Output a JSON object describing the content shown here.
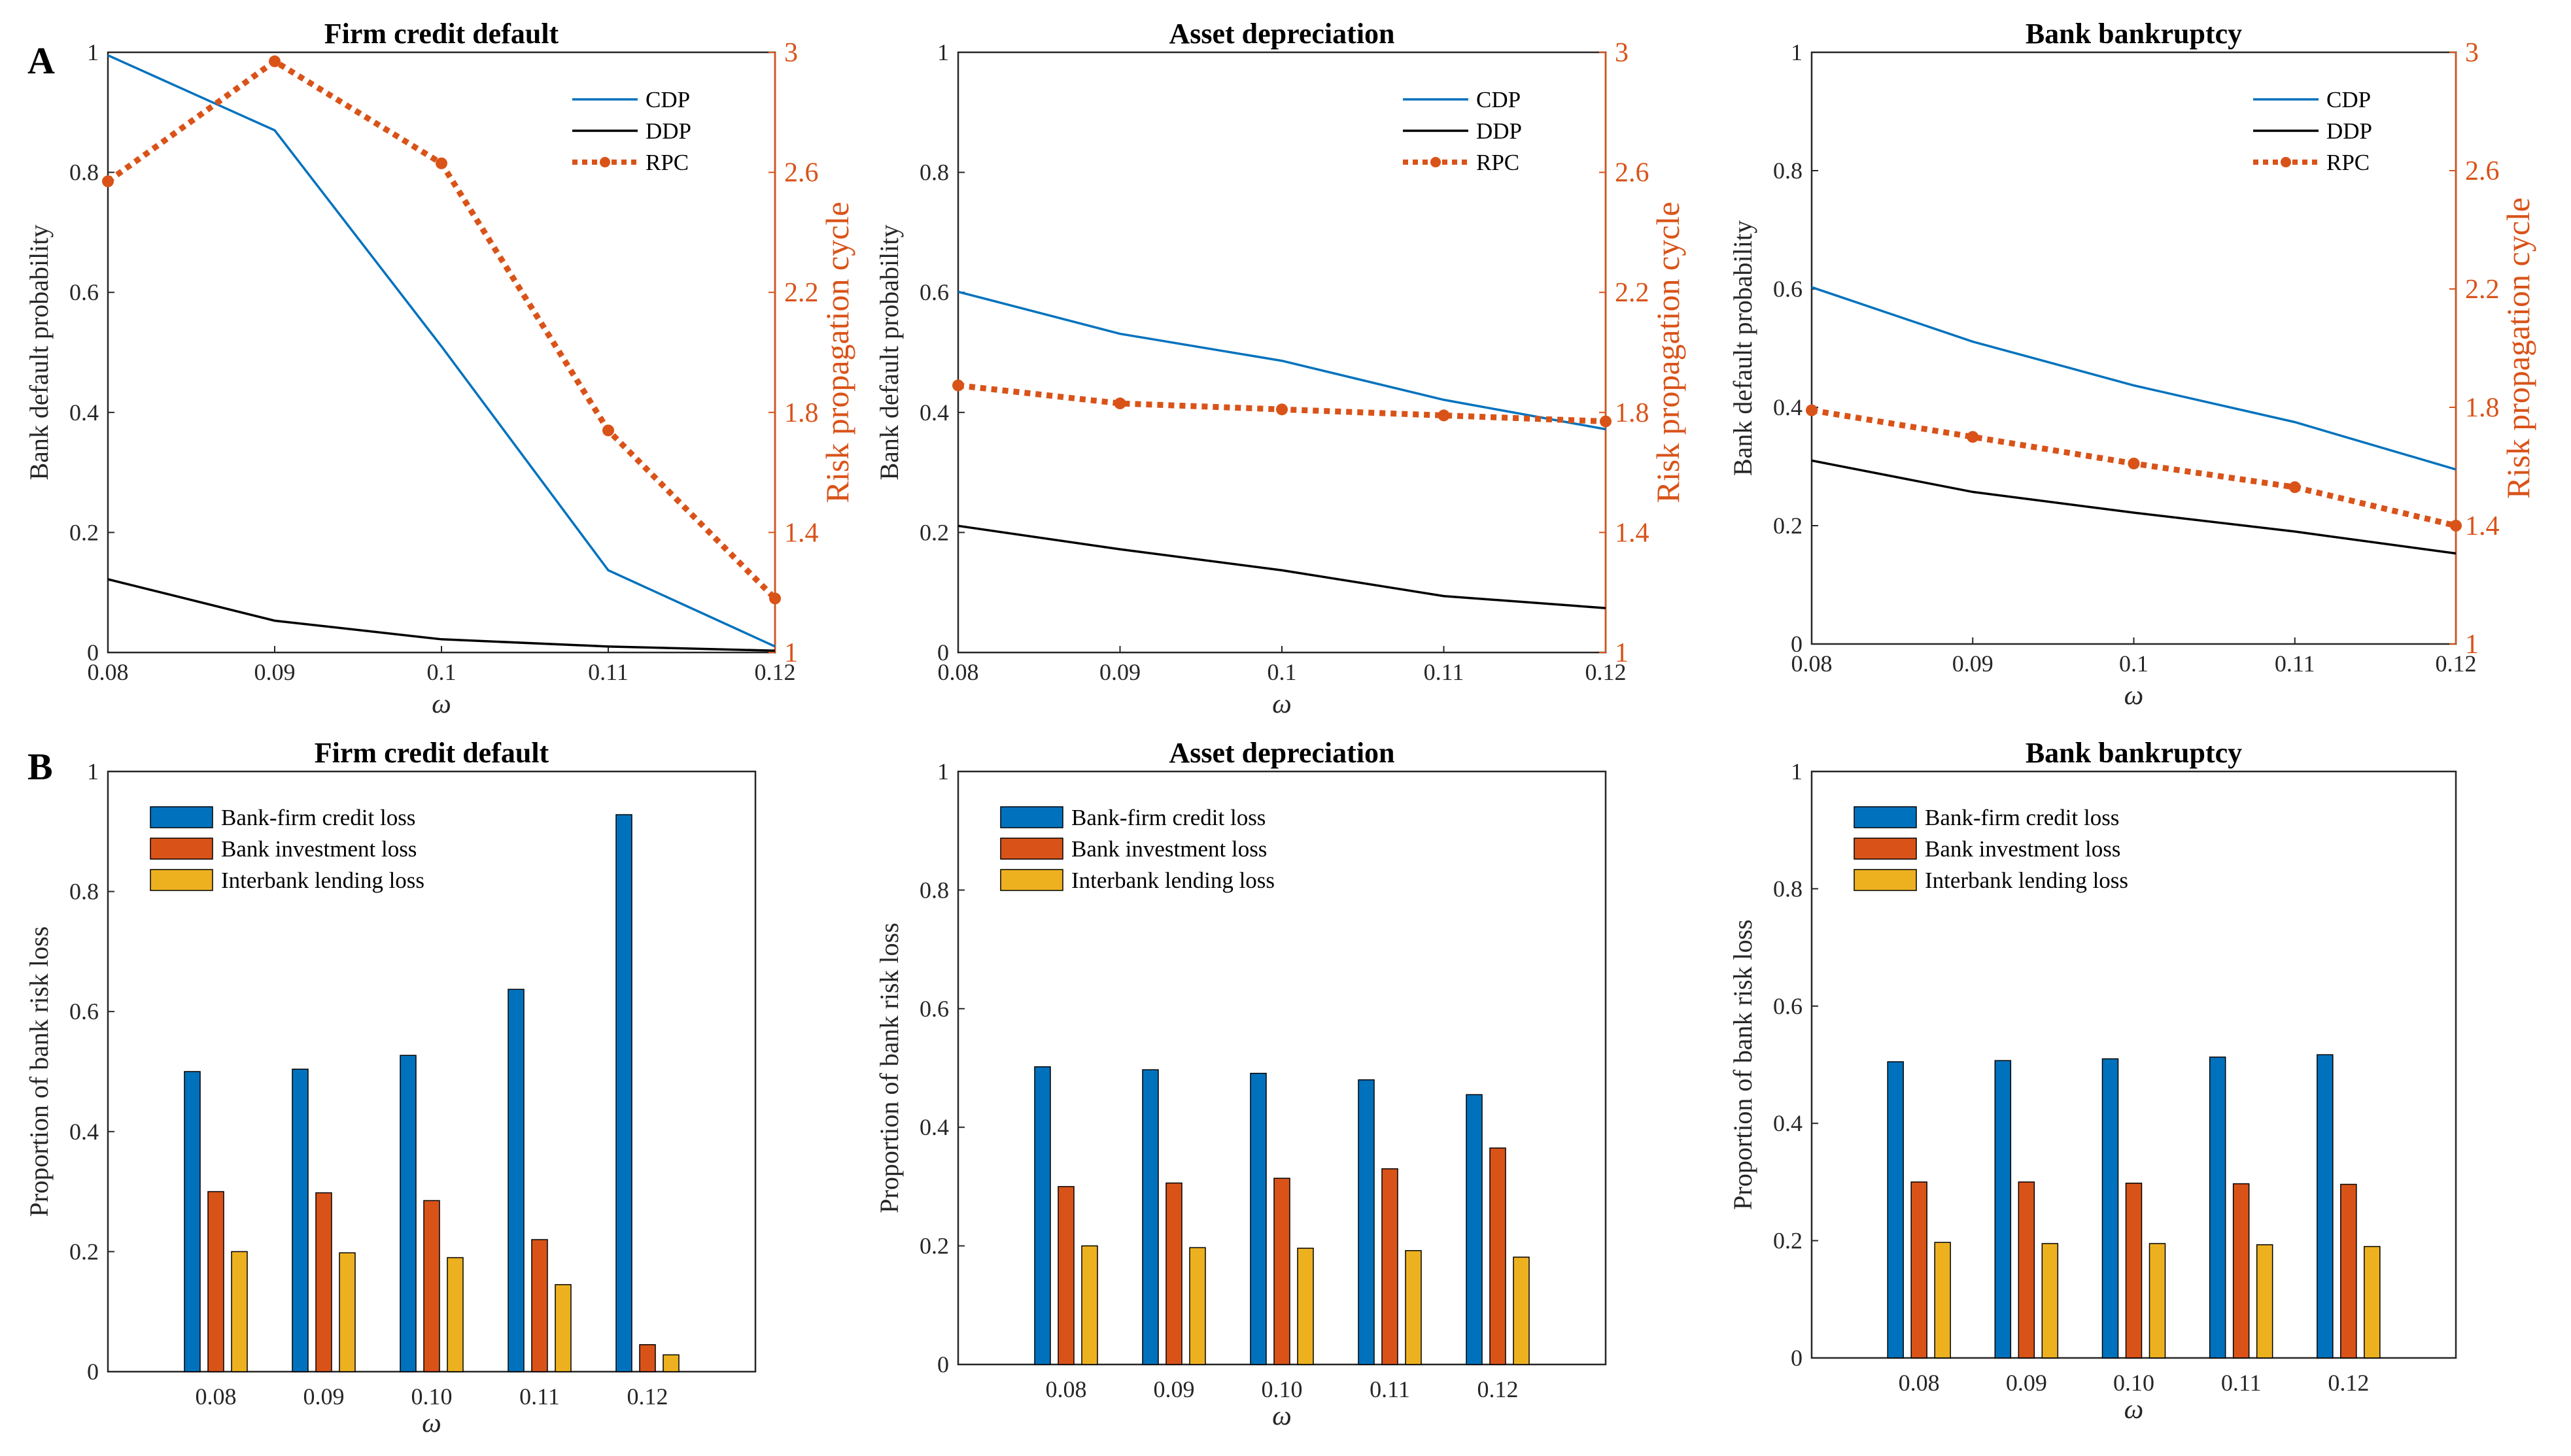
{
  "panel_labels": [
    "A",
    "B"
  ],
  "colors": {
    "cdp": "#0072BD",
    "ddp": "#000000",
    "rpc": "#D95319",
    "bar_credit": "#0072BD",
    "bar_invest": "#D95319",
    "bar_interbank": "#EDB120"
  },
  "chart_data": [
    {
      "type": "line",
      "panel": "A",
      "title": "Firm credit default",
      "xlabel": "ω",
      "ylabel": "Bank default probability",
      "y2label": "Risk propagation cycle",
      "x": [
        0.08,
        0.09,
        0.1,
        0.11,
        0.12
      ],
      "x_tick_labels": [
        "0.08",
        "0.09",
        "0.1",
        "0.11",
        "0.12"
      ],
      "xlim": [
        0.08,
        0.12
      ],
      "ylim": [
        0,
        1
      ],
      "y2lim": [
        1,
        3
      ],
      "y_ticks": [
        "0",
        "0.2",
        "0.4",
        "0.6",
        "0.8",
        "1"
      ],
      "y2_ticks": [
        "1",
        "1.4",
        "1.8",
        "2.2",
        "2.6",
        "3"
      ],
      "legend": [
        "CDP",
        "DDP",
        "RPC"
      ],
      "series": [
        {
          "name": "CDP",
          "axis": "left",
          "values": [
            0.995,
            0.87,
            0.51,
            0.137,
            0.01
          ]
        },
        {
          "name": "DDP",
          "axis": "left",
          "values": [
            0.122,
            0.053,
            0.022,
            0.01,
            0.003
          ]
        },
        {
          "name": "RPC",
          "axis": "right",
          "values": [
            2.57,
            2.97,
            2.63,
            1.74,
            1.18
          ]
        }
      ]
    },
    {
      "type": "line",
      "panel": "A",
      "title": "Asset depreciation",
      "xlabel": "ω",
      "ylabel": "Bank default probability",
      "y2label": "Risk propagation cycle",
      "x": [
        0.08,
        0.09,
        0.1,
        0.11,
        0.12
      ],
      "x_tick_labels": [
        "0.08",
        "0.09",
        "0.1",
        "0.11",
        "0.12"
      ],
      "xlim": [
        0.08,
        0.12
      ],
      "ylim": [
        0,
        1
      ],
      "y2lim": [
        1,
        3
      ],
      "y_ticks": [
        "0",
        "0.2",
        "0.4",
        "0.6",
        "0.8",
        "1"
      ],
      "y2_ticks": [
        "1",
        "1.4",
        "1.8",
        "2.2",
        "2.6",
        "3"
      ],
      "legend": [
        "CDP",
        "DDP",
        "RPC"
      ],
      "series": [
        {
          "name": "CDP",
          "axis": "left",
          "values": [
            0.601,
            0.531,
            0.486,
            0.421,
            0.372
          ]
        },
        {
          "name": "DDP",
          "axis": "left",
          "values": [
            0.211,
            0.172,
            0.137,
            0.094,
            0.074
          ]
        },
        {
          "name": "RPC",
          "axis": "right",
          "values": [
            1.89,
            1.83,
            1.81,
            1.79,
            1.77
          ]
        }
      ]
    },
    {
      "type": "line",
      "panel": "A",
      "title": "Bank bankruptcy",
      "xlabel": "ω",
      "ylabel": "Bank default probability",
      "y2label": "Risk propagation cycle",
      "x": [
        0.08,
        0.09,
        0.1,
        0.11,
        0.12
      ],
      "x_tick_labels": [
        "0.08",
        "0.09",
        "0.1",
        "0.11",
        "0.12"
      ],
      "xlim": [
        0.08,
        0.12
      ],
      "ylim": [
        0,
        1
      ],
      "y2lim": [
        1,
        3
      ],
      "y_ticks": [
        "0",
        "0.2",
        "0.4",
        "0.6",
        "0.8",
        "1"
      ],
      "y2_ticks": [
        "1",
        "1.4",
        "1.8",
        "2.2",
        "2.6",
        "3"
      ],
      "legend": [
        "CDP",
        "DDP",
        "RPC"
      ],
      "series": [
        {
          "name": "CDP",
          "axis": "left",
          "values": [
            0.603,
            0.511,
            0.437,
            0.375,
            0.295
          ]
        },
        {
          "name": "DDP",
          "axis": "left",
          "values": [
            0.31,
            0.257,
            0.222,
            0.19,
            0.153
          ]
        },
        {
          "name": "RPC",
          "axis": "right",
          "values": [
            1.79,
            1.7,
            1.61,
            1.53,
            1.4
          ]
        }
      ]
    },
    {
      "type": "bar",
      "panel": "B",
      "title": "Firm credit default",
      "xlabel": "ω",
      "ylabel": "Proportion of bank risk loss",
      "categories": [
        "0.08",
        "0.09",
        "0.10",
        "0.11",
        "0.12"
      ],
      "ylim": [
        0,
        1
      ],
      "y_ticks": [
        "0",
        "0.2",
        "0.4",
        "0.6",
        "0.8",
        "1"
      ],
      "legend": [
        "Bank-firm credit loss",
        "Bank investment loss",
        "Interbank lending loss"
      ],
      "series": [
        {
          "name": "Bank-firm credit loss",
          "values": [
            0.5,
            0.504,
            0.527,
            0.637,
            0.928
          ]
        },
        {
          "name": "Bank investment loss",
          "values": [
            0.3,
            0.298,
            0.285,
            0.22,
            0.045
          ]
        },
        {
          "name": "Interbank lending loss",
          "values": [
            0.2,
            0.198,
            0.19,
            0.145,
            0.028
          ]
        }
      ]
    },
    {
      "type": "bar",
      "panel": "B",
      "title": "Asset depreciation",
      "xlabel": "ω",
      "ylabel": "Proportion of bank risk loss",
      "categories": [
        "0.08",
        "0.09",
        "0.10",
        "0.11",
        "0.12"
      ],
      "ylim": [
        0,
        1
      ],
      "y_ticks": [
        "0",
        "0.2",
        "0.4",
        "0.6",
        "0.8",
        "1"
      ],
      "legend": [
        "Bank-firm credit loss",
        "Bank investment loss",
        "Interbank lending loss"
      ],
      "series": [
        {
          "name": "Bank-firm credit loss",
          "values": [
            0.502,
            0.497,
            0.491,
            0.48,
            0.455
          ]
        },
        {
          "name": "Bank investment loss",
          "values": [
            0.3,
            0.306,
            0.314,
            0.33,
            0.365
          ]
        },
        {
          "name": "Interbank lending loss",
          "values": [
            0.2,
            0.197,
            0.196,
            0.192,
            0.181
          ]
        }
      ]
    },
    {
      "type": "bar",
      "panel": "B",
      "title": "Bank bankruptcy",
      "xlabel": "ω",
      "ylabel": "Proportion of bank risk loss",
      "categories": [
        "0.08",
        "0.09",
        "0.10",
        "0.11",
        "0.12"
      ],
      "ylim": [
        0,
        1
      ],
      "y_ticks": [
        "0",
        "0.2",
        "0.4",
        "0.6",
        "0.8",
        "1"
      ],
      "legend": [
        "Bank-firm credit loss",
        "Bank investment loss",
        "Interbank lending loss"
      ],
      "series": [
        {
          "name": "Bank-firm credit loss",
          "values": [
            0.505,
            0.507,
            0.51,
            0.513,
            0.517
          ]
        },
        {
          "name": "Bank investment loss",
          "values": [
            0.3,
            0.3,
            0.298,
            0.297,
            0.296
          ]
        },
        {
          "name": "Interbank lending loss",
          "values": [
            0.197,
            0.195,
            0.195,
            0.193,
            0.19
          ]
        }
      ]
    }
  ]
}
